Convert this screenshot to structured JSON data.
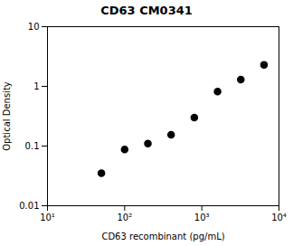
{
  "chart_data": {
    "type": "scatter",
    "title": "CD63 CM0341",
    "xlabel": "CD63 recombinant (pg/mL)",
    "ylabel": "Optical Density",
    "x": [
      50,
      100,
      200,
      400,
      800,
      1600,
      3200,
      6400
    ],
    "y": [
      0.035,
      0.088,
      0.11,
      0.155,
      0.3,
      0.82,
      1.3,
      2.3
    ],
    "xlim": [
      10,
      10000
    ],
    "ylim": [
      0.01,
      10
    ],
    "xticks": [
      {
        "value": 10,
        "label": "10¹"
      },
      {
        "value": 100,
        "label": "10²"
      },
      {
        "value": 1000,
        "label": "10³"
      },
      {
        "value": 10000,
        "label": "10⁴"
      }
    ],
    "yticks": [
      0.01,
      0.1,
      1,
      10
    ],
    "log": true,
    "color": "black",
    "marker": "o",
    "grid": false
  }
}
